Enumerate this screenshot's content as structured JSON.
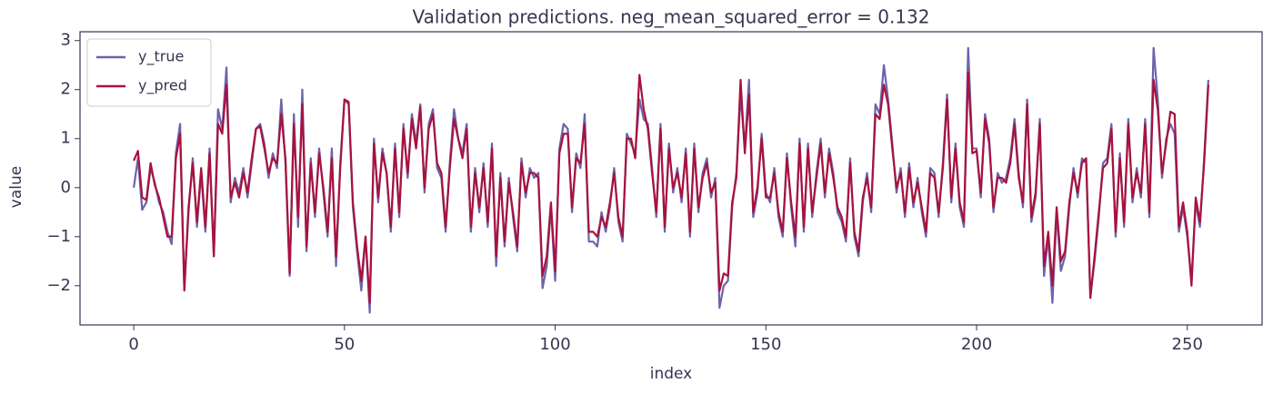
{
  "chart_data": {
    "type": "line",
    "title": "Validation predictions. neg_mean_squared_error = 0.132",
    "x_label": "index",
    "y_label": "value",
    "legend": "upper left",
    "xlim": [
      -12.75,
      267.75
    ],
    "ylim": [
      -2.8,
      3.18
    ],
    "xticks": [
      0,
      50,
      100,
      150,
      200,
      250
    ],
    "yticks": [
      {
        "value": -2,
        "label": "−2"
      },
      {
        "value": -1,
        "label": "−1"
      },
      0,
      1,
      2,
      3
    ],
    "x": [
      0,
      1,
      2,
      3,
      4,
      5,
      6,
      7,
      8,
      9,
      10,
      11,
      12,
      13,
      14,
      15,
      16,
      17,
      18,
      19,
      20,
      21,
      22,
      23,
      24,
      25,
      26,
      27,
      28,
      29,
      30,
      31,
      32,
      33,
      34,
      35,
      36,
      37,
      38,
      39,
      40,
      41,
      42,
      43,
      44,
      45,
      46,
      47,
      48,
      49,
      50,
      51,
      52,
      53,
      54,
      55,
      56,
      57,
      58,
      59,
      60,
      61,
      62,
      63,
      64,
      65,
      66,
      67,
      68,
      69,
      70,
      71,
      72,
      73,
      74,
      75,
      76,
      77,
      78,
      79,
      80,
      81,
      82,
      83,
      84,
      85,
      86,
      87,
      88,
      89,
      90,
      91,
      92,
      93,
      94,
      95,
      96,
      97,
      98,
      99,
      100,
      101,
      102,
      103,
      104,
      105,
      106,
      107,
      108,
      109,
      110,
      111,
      112,
      113,
      114,
      115,
      116,
      117,
      118,
      119,
      120,
      121,
      122,
      123,
      124,
      125,
      126,
      127,
      128,
      129,
      130,
      131,
      132,
      133,
      134,
      135,
      136,
      137,
      138,
      139,
      140,
      141,
      142,
      143,
      144,
      145,
      146,
      147,
      148,
      149,
      150,
      151,
      152,
      153,
      154,
      155,
      156,
      157,
      158,
      159,
      160,
      161,
      162,
      163,
      164,
      165,
      166,
      167,
      168,
      169,
      170,
      171,
      172,
      173,
      174,
      175,
      176,
      177,
      178,
      179,
      180,
      181,
      182,
      183,
      184,
      185,
      186,
      187,
      188,
      189,
      190,
      191,
      192,
      193,
      194,
      195,
      196,
      197,
      198,
      199,
      200,
      201,
      202,
      203,
      204,
      205,
      206,
      207,
      208,
      209,
      210,
      211,
      212,
      213,
      214,
      215,
      216,
      217,
      218,
      219,
      220,
      221,
      222,
      223,
      224,
      225,
      226,
      227,
      228,
      229,
      230,
      231,
      232,
      233,
      234,
      235,
      236,
      237,
      238,
      239,
      240,
      241,
      242,
      243,
      244,
      245,
      246,
      247,
      248,
      249,
      250,
      251,
      252,
      253,
      254,
      255
    ],
    "series": [
      {
        "name": "y_true",
        "color": "#6b63ac",
        "values": [
          0.0,
          0.6,
          -0.45,
          -0.3,
          0.4,
          0.1,
          -0.3,
          -0.5,
          -0.9,
          -1.15,
          0.7,
          1.3,
          -2.05,
          -0.5,
          0.6,
          -0.8,
          0.3,
          -0.9,
          0.8,
          -1.4,
          1.6,
          1.2,
          2.45,
          -0.3,
          0.2,
          -0.1,
          0.4,
          -0.2,
          0.5,
          1.2,
          1.3,
          0.9,
          0.2,
          0.7,
          0.4,
          1.8,
          0.5,
          -1.8,
          1.5,
          -0.8,
          2.0,
          -1.3,
          0.6,
          -0.6,
          0.8,
          -0.1,
          -1.0,
          0.8,
          -1.6,
          0.5,
          1.8,
          1.7,
          -0.4,
          -1.3,
          -2.1,
          -1.0,
          -2.55,
          1.0,
          -0.3,
          0.8,
          0.3,
          -0.9,
          0.9,
          -0.6,
          1.3,
          0.2,
          1.5,
          0.9,
          1.7,
          -0.1,
          1.3,
          1.6,
          0.4,
          0.2,
          -0.9,
          0.5,
          1.6,
          1.0,
          0.7,
          1.3,
          -0.9,
          0.4,
          -0.5,
          0.5,
          -0.8,
          0.9,
          -1.6,
          0.3,
          -1.2,
          0.2,
          -0.6,
          -1.3,
          0.6,
          -0.2,
          0.4,
          0.2,
          0.3,
          -2.05,
          -1.6,
          -0.4,
          -1.9,
          0.8,
          1.3,
          1.2,
          -0.5,
          0.7,
          0.4,
          1.5,
          -1.1,
          -1.1,
          -1.2,
          -0.5,
          -0.9,
          -0.4,
          0.4,
          -0.7,
          -1.1,
          1.1,
          0.9,
          0.7,
          1.8,
          1.4,
          1.3,
          0.4,
          -0.6,
          1.3,
          -0.9,
          0.9,
          -0.1,
          0.4,
          -0.3,
          0.8,
          -1.0,
          0.9,
          -0.5,
          0.3,
          0.6,
          -0.2,
          0.2,
          -2.45,
          -2.0,
          -1.9,
          -0.4,
          0.3,
          1.9,
          0.8,
          2.2,
          -0.6,
          -0.1,
          1.1,
          -0.1,
          -0.3,
          0.4,
          -0.6,
          -1.0,
          0.7,
          -0.4,
          -1.2,
          1.0,
          -0.9,
          0.9,
          -0.6,
          0.3,
          1.0,
          -0.2,
          0.8,
          0.3,
          -0.5,
          -0.7,
          -1.1,
          0.6,
          -1.0,
          -1.4,
          -0.3,
          0.3,
          -0.5,
          1.7,
          1.5,
          2.5,
          1.8,
          0.9,
          -0.1,
          0.4,
          -0.6,
          0.5,
          -0.4,
          0.2,
          -0.5,
          -1.0,
          0.4,
          0.3,
          -0.6,
          0.5,
          1.9,
          -0.3,
          0.9,
          -0.4,
          -0.8,
          2.85,
          0.8,
          0.8,
          -0.2,
          1.5,
          1.0,
          -0.5,
          0.3,
          0.1,
          0.2,
          0.6,
          1.4,
          0.3,
          -0.4,
          1.8,
          -0.7,
          -0.2,
          1.4,
          -1.8,
          -1.0,
          -2.35,
          -0.5,
          -1.7,
          -1.4,
          -0.4,
          0.4,
          -0.2,
          0.6,
          0.5,
          -2.2,
          -1.5,
          -0.6,
          0.5,
          0.6,
          1.3,
          -1.0,
          0.7,
          -0.8,
          1.4,
          -0.3,
          0.4,
          -0.2,
          1.4,
          -0.6,
          2.85,
          1.8,
          0.2,
          1.0,
          1.3,
          1.1,
          -0.9,
          -0.4,
          -1.0,
          -1.9,
          -0.3,
          -0.8,
          0.6,
          2.2
        ]
      },
      {
        "name": "y_pred",
        "color": "#a8123e",
        "values": [
          0.55,
          0.75,
          -0.2,
          -0.25,
          0.5,
          0.05,
          -0.2,
          -0.6,
          -1.0,
          -1.0,
          0.6,
          1.1,
          -2.1,
          -0.4,
          0.5,
          -0.7,
          0.4,
          -0.8,
          0.7,
          -1.4,
          1.3,
          1.1,
          2.1,
          -0.2,
          0.1,
          -0.2,
          0.3,
          -0.1,
          0.6,
          1.2,
          1.25,
          0.8,
          0.3,
          0.6,
          0.5,
          1.5,
          0.6,
          -1.75,
          1.3,
          -0.6,
          1.7,
          -1.2,
          0.5,
          -0.5,
          0.7,
          0.0,
          -0.9,
          0.6,
          -1.4,
          0.4,
          1.8,
          1.75,
          -0.3,
          -1.2,
          -1.9,
          -1.0,
          -2.35,
          0.9,
          -0.2,
          0.7,
          0.3,
          -0.8,
          0.8,
          -0.5,
          1.2,
          0.3,
          1.4,
          0.8,
          1.65,
          0.0,
          1.2,
          1.5,
          0.5,
          0.3,
          -0.8,
          0.4,
          1.4,
          1.0,
          0.6,
          1.2,
          -0.8,
          0.3,
          -0.4,
          0.4,
          -0.7,
          0.8,
          -1.4,
          0.2,
          -1.1,
          0.1,
          -0.5,
          -1.2,
          0.5,
          -0.1,
          0.3,
          0.3,
          0.2,
          -1.8,
          -1.4,
          -0.3,
          -1.7,
          0.7,
          1.1,
          1.1,
          -0.4,
          0.6,
          0.5,
          1.3,
          -0.9,
          -0.9,
          -1.0,
          -0.6,
          -0.8,
          -0.3,
          0.3,
          -0.6,
          -1.0,
          1.0,
          1.0,
          0.6,
          2.3,
          1.6,
          1.2,
          0.3,
          -0.5,
          1.2,
          -0.8,
          0.8,
          0.0,
          0.3,
          -0.2,
          0.7,
          -0.9,
          0.8,
          -0.4,
          0.2,
          0.5,
          -0.1,
          0.1,
          -2.1,
          -1.75,
          -1.8,
          -0.3,
          0.2,
          2.2,
          0.7,
          1.9,
          -0.5,
          0.0,
          1.0,
          -0.2,
          -0.2,
          0.3,
          -0.5,
          -0.9,
          0.6,
          -0.3,
          -1.0,
          0.9,
          -0.8,
          0.8,
          -0.5,
          0.2,
          0.9,
          -0.1,
          0.7,
          0.2,
          -0.4,
          -0.6,
          -1.0,
          0.5,
          -0.9,
          -1.3,
          -0.2,
          0.2,
          -0.4,
          1.5,
          1.4,
          2.1,
          1.7,
          0.8,
          0.0,
          0.3,
          -0.5,
          0.4,
          -0.3,
          0.1,
          -0.4,
          -0.9,
          0.3,
          0.2,
          -0.5,
          0.4,
          1.8,
          -0.2,
          0.8,
          -0.3,
          -0.7,
          2.35,
          0.7,
          0.75,
          -0.1,
          1.4,
          0.9,
          -0.4,
          0.2,
          0.2,
          0.1,
          0.5,
          1.3,
          0.2,
          -0.3,
          1.7,
          -0.6,
          -0.1,
          1.3,
          -1.6,
          -0.9,
          -2.0,
          -0.4,
          -1.5,
          -1.3,
          -0.3,
          0.3,
          -0.1,
          0.5,
          0.6,
          -2.25,
          -1.4,
          -0.5,
          0.4,
          0.5,
          1.2,
          -0.9,
          0.6,
          -0.7,
          1.3,
          -0.2,
          0.3,
          -0.1,
          1.3,
          -0.5,
          2.2,
          1.6,
          0.3,
          0.9,
          1.55,
          1.5,
          -0.8,
          -0.3,
          -0.9,
          -2.0,
          -0.2,
          -0.7,
          0.5,
          2.1
        ]
      }
    ]
  }
}
